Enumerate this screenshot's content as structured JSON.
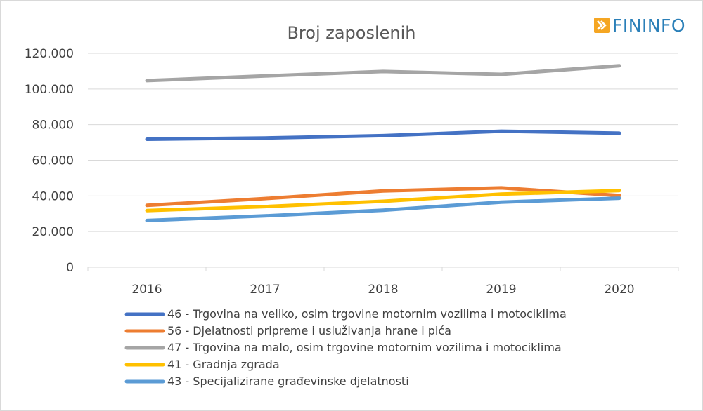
{
  "logo": {
    "text": "FININFO",
    "color": "#2a7fb8",
    "icon_color": "#f5a623",
    "icon": "arrow-right-icon"
  },
  "chart_data": {
    "type": "line",
    "title": "Broj zaposlenih",
    "xlabel": "",
    "ylabel": "",
    "categories": [
      "2016",
      "2017",
      "2018",
      "2019",
      "2020"
    ],
    "ylim": [
      0,
      120000
    ],
    "yticks": [
      0,
      20000,
      40000,
      60000,
      80000,
      100000,
      120000
    ],
    "ytick_labels": [
      "0",
      "20.000",
      "40.000",
      "60.000",
      "80.000",
      "100.000",
      "120.000"
    ],
    "grid": true,
    "legend_position": "bottom",
    "series": [
      {
        "name": "46 - Trgovina na veliko, osim trgovine motornim vozilima i motociklima",
        "color": "#4472c4",
        "values": [
          71800,
          72500,
          73800,
          76300,
          75200
        ]
      },
      {
        "name": "56 - Djelatnosti pripreme i usluživanja hrane i pića",
        "color": "#ed7d31",
        "values": [
          34700,
          38500,
          42800,
          44500,
          40200
        ]
      },
      {
        "name": "47 - Trgovina na malo, osim trgovine motornim vozilima i motociklima",
        "color": "#a5a5a5",
        "values": [
          104700,
          107300,
          109800,
          108200,
          113000
        ]
      },
      {
        "name": "41 - Gradnja zgrada",
        "color": "#ffc000",
        "values": [
          31800,
          34000,
          37000,
          41000,
          43000
        ]
      },
      {
        "name": "43 - Specijalizirane građevinske djelatnosti",
        "color": "#5b9bd5",
        "values": [
          26200,
          28800,
          32000,
          36500,
          38700
        ]
      }
    ]
  }
}
